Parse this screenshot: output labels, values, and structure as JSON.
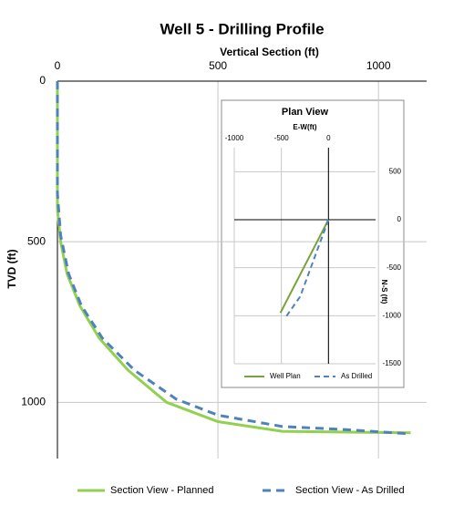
{
  "chart_data": [
    {
      "type": "line",
      "title": "Well 5 - Drilling Profile",
      "x_label": "Vertical Section (ft)",
      "y_label": "TVD (ft)",
      "x_axis_position": "top",
      "y_tick_side": "left",
      "y_reversed": true,
      "grid": true,
      "legend": "bottom",
      "xlim": [
        0,
        1150
      ],
      "xticks": [
        0,
        500,
        1000
      ],
      "ylim": [
        0,
        1175
      ],
      "yticks": [
        0,
        500,
        1000
      ],
      "series": [
        {
          "name": "Section View - Planned",
          "color": "#92d050",
          "dashed": false,
          "x": [
            0,
            0,
            10,
            30,
            70,
            130,
            220,
            340,
            500,
            700,
            1100
          ],
          "values": [
            0,
            400,
            500,
            600,
            700,
            800,
            900,
            1000,
            1060,
            1090,
            1095
          ]
        },
        {
          "name": "Section View - As Drilled",
          "color": "#4f81bd",
          "dashed": true,
          "x": [
            0,
            0,
            10,
            35,
            75,
            140,
            240,
            370,
            500,
            700,
            900,
            1100
          ],
          "values": [
            0,
            350,
            480,
            600,
            700,
            800,
            900,
            990,
            1040,
            1075,
            1085,
            1098
          ]
        }
      ]
    },
    {
      "type": "line",
      "title": "Plan View",
      "x_label": "E-W(ft)",
      "y_label": "N-S (ft)",
      "x_axis_position": "top",
      "y_tick_side": "right",
      "y_reversed": false,
      "grid": true,
      "legend": "bottom",
      "xlim": [
        -1000,
        500
      ],
      "xticks": [
        -1000,
        -500,
        0
      ],
      "ylim": [
        -1500,
        750
      ],
      "yticks": [
        500,
        0,
        -500,
        -1000,
        -1500
      ],
      "series": [
        {
          "name": "Well Plan",
          "color": "#77a33a",
          "dashed": false,
          "x": [
            0,
            -510
          ],
          "values": [
            0,
            -970
          ]
        },
        {
          "name": "As Drilled",
          "color": "#4f81bd",
          "dashed": true,
          "x": [
            0,
            -150,
            -300,
            -450
          ],
          "values": [
            0,
            -400,
            -800,
            -1010
          ]
        }
      ]
    }
  ]
}
